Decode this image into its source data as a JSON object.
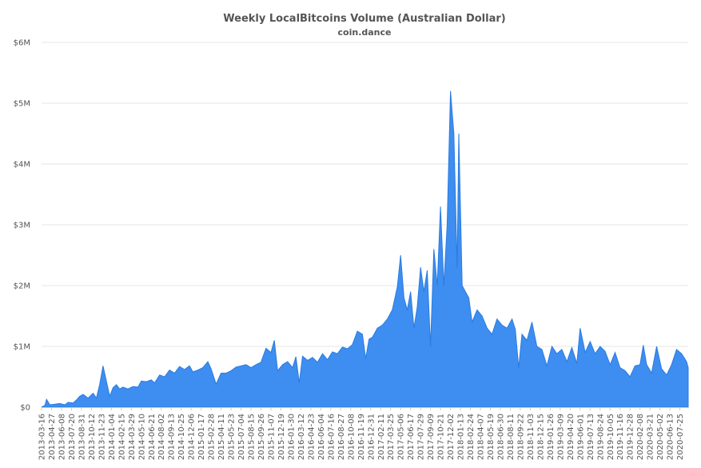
{
  "chart_data": {
    "type": "area",
    "title": "Weekly LocalBitcoins Volume (Australian Dollar)",
    "subtitle": "coin.dance",
    "xlabel": "",
    "ylabel": "",
    "ylim": [
      0,
      6000000
    ],
    "y_ticks": [
      {
        "value": 0,
        "label": "$0"
      },
      {
        "value": 1000000,
        "label": "$1M"
      },
      {
        "value": 2000000,
        "label": "$2M"
      },
      {
        "value": 3000000,
        "label": "$3M"
      },
      {
        "value": 4000000,
        "label": "$4M"
      },
      {
        "value": 5000000,
        "label": "$5M"
      },
      {
        "value": 6000000,
        "label": "$6M"
      }
    ],
    "x_tick_labels": [
      "2013-03-16",
      "2013-04-27",
      "2013-06-08",
      "2013-07-20",
      "2013-08-31",
      "2013-10-12",
      "2013-11-23",
      "2014-01-04",
      "2014-02-15",
      "2014-03-29",
      "2014-05-10",
      "2014-06-21",
      "2014-08-02",
      "2014-09-13",
      "2014-10-25",
      "2014-12-06",
      "2015-01-17",
      "2015-02-28",
      "2015-04-11",
      "2015-05-23",
      "2015-07-04",
      "2015-08-15",
      "2015-09-26",
      "2015-11-07",
      "2015-12-19",
      "2016-01-30",
      "2016-03-12",
      "2016-04-23",
      "2016-06-04",
      "2016-07-16",
      "2016-08-27",
      "2016-10-08",
      "2016-11-19",
      "2016-12-31",
      "2017-02-11",
      "2017-03-25",
      "2017-05-06",
      "2017-06-17",
      "2017-07-29",
      "2017-09-09",
      "2017-10-21",
      "2017-12-02",
      "2018-01-13",
      "2018-02-24",
      "2018-04-07",
      "2018-05-19",
      "2018-06-30",
      "2018-08-11",
      "2018-09-22",
      "2018-11-03",
      "2018-12-15",
      "2019-01-26",
      "2019-03-09",
      "2019-04-20",
      "2019-06-01",
      "2019-07-13",
      "2019-08-24",
      "2019-10-05",
      "2019-11-16",
      "2019-12-28",
      "2020-02-08",
      "2020-03-21",
      "2020-05-02",
      "2020-06-13",
      "2020-07-25"
    ],
    "x_start": "2013-03-16",
    "x_end": "2020-08-29",
    "series": [
      {
        "color": "#3d8ef0",
        "values": [
          [
            "2013-03-16",
            0
          ],
          [
            "2013-03-30",
            30000
          ],
          [
            "2013-04-06",
            130000
          ],
          [
            "2013-04-20",
            40000
          ],
          [
            "2013-05-11",
            50000
          ],
          [
            "2013-06-01",
            60000
          ],
          [
            "2013-06-22",
            40000
          ],
          [
            "2013-07-06",
            80000
          ],
          [
            "2013-07-27",
            70000
          ],
          [
            "2013-08-10",
            120000
          ],
          [
            "2013-08-24",
            180000
          ],
          [
            "2013-09-07",
            210000
          ],
          [
            "2013-09-28",
            150000
          ],
          [
            "2013-10-19",
            230000
          ],
          [
            "2013-11-02",
            150000
          ],
          [
            "2013-11-16",
            380000
          ],
          [
            "2013-11-30",
            680000
          ],
          [
            "2013-12-14",
            430000
          ],
          [
            "2013-12-28",
            180000
          ],
          [
            "2014-01-11",
            320000
          ],
          [
            "2014-01-25",
            370000
          ],
          [
            "2014-02-08",
            300000
          ],
          [
            "2014-02-22",
            330000
          ],
          [
            "2014-03-15",
            300000
          ],
          [
            "2014-04-05",
            340000
          ],
          [
            "2014-04-26",
            330000
          ],
          [
            "2014-05-10",
            430000
          ],
          [
            "2014-05-31",
            420000
          ],
          [
            "2014-06-21",
            450000
          ],
          [
            "2014-07-05",
            400000
          ],
          [
            "2014-07-26",
            530000
          ],
          [
            "2014-08-16",
            500000
          ],
          [
            "2014-09-06",
            610000
          ],
          [
            "2014-09-27",
            560000
          ],
          [
            "2014-10-18",
            670000
          ],
          [
            "2014-11-08",
            620000
          ],
          [
            "2014-11-29",
            680000
          ],
          [
            "2014-12-13",
            580000
          ],
          [
            "2015-01-03",
            610000
          ],
          [
            "2015-01-24",
            650000
          ],
          [
            "2015-02-14",
            750000
          ],
          [
            "2015-02-28",
            630000
          ],
          [
            "2015-03-21",
            380000
          ],
          [
            "2015-04-11",
            560000
          ],
          [
            "2015-05-02",
            560000
          ],
          [
            "2015-05-23",
            600000
          ],
          [
            "2015-06-13",
            660000
          ],
          [
            "2015-07-04",
            680000
          ],
          [
            "2015-07-25",
            700000
          ],
          [
            "2015-08-15",
            650000
          ],
          [
            "2015-09-05",
            700000
          ],
          [
            "2015-09-26",
            740000
          ],
          [
            "2015-10-17",
            970000
          ],
          [
            "2015-11-07",
            900000
          ],
          [
            "2015-11-21",
            1100000
          ],
          [
            "2015-12-05",
            600000
          ],
          [
            "2015-12-26",
            700000
          ],
          [
            "2016-01-16",
            750000
          ],
          [
            "2016-02-06",
            650000
          ],
          [
            "2016-02-20",
            830000
          ],
          [
            "2016-03-05",
            400000
          ],
          [
            "2016-03-19",
            840000
          ],
          [
            "2016-04-09",
            770000
          ],
          [
            "2016-04-30",
            820000
          ],
          [
            "2016-05-21",
            740000
          ],
          [
            "2016-06-11",
            880000
          ],
          [
            "2016-07-02",
            780000
          ],
          [
            "2016-07-23",
            910000
          ],
          [
            "2016-08-13",
            880000
          ],
          [
            "2016-09-03",
            990000
          ],
          [
            "2016-09-24",
            960000
          ],
          [
            "2016-10-15",
            1030000
          ],
          [
            "2016-11-05",
            1250000
          ],
          [
            "2016-11-26",
            1200000
          ],
          [
            "2016-12-10",
            800000
          ],
          [
            "2016-12-24",
            1120000
          ],
          [
            "2017-01-07",
            1150000
          ],
          [
            "2017-01-28",
            1300000
          ],
          [
            "2017-02-18",
            1350000
          ],
          [
            "2017-03-11",
            1450000
          ],
          [
            "2017-04-01",
            1600000
          ],
          [
            "2017-04-22",
            1980000
          ],
          [
            "2017-05-06",
            2500000
          ],
          [
            "2017-05-20",
            1800000
          ],
          [
            "2017-06-03",
            1600000
          ],
          [
            "2017-06-17",
            1900000
          ],
          [
            "2017-07-01",
            1300000
          ],
          [
            "2017-07-15",
            1650000
          ],
          [
            "2017-07-29",
            2300000
          ],
          [
            "2017-08-12",
            1900000
          ],
          [
            "2017-08-26",
            2250000
          ],
          [
            "2017-09-09",
            1000000
          ],
          [
            "2017-09-23",
            2600000
          ],
          [
            "2017-10-07",
            2000000
          ],
          [
            "2017-10-21",
            3300000
          ],
          [
            "2017-11-04",
            2000000
          ],
          [
            "2017-11-18",
            3000000
          ],
          [
            "2017-12-02",
            5200000
          ],
          [
            "2017-12-16",
            4500000
          ],
          [
            "2017-12-30",
            2300000
          ],
          [
            "2018-01-06",
            4500000
          ],
          [
            "2018-01-20",
            2000000
          ],
          [
            "2018-02-03",
            1900000
          ],
          [
            "2018-02-17",
            1800000
          ],
          [
            "2018-03-03",
            1400000
          ],
          [
            "2018-03-24",
            1600000
          ],
          [
            "2018-04-14",
            1500000
          ],
          [
            "2018-05-05",
            1300000
          ],
          [
            "2018-05-26",
            1200000
          ],
          [
            "2018-06-16",
            1450000
          ],
          [
            "2018-07-07",
            1350000
          ],
          [
            "2018-07-28",
            1300000
          ],
          [
            "2018-08-18",
            1450000
          ],
          [
            "2018-09-01",
            1280000
          ],
          [
            "2018-09-15",
            650000
          ],
          [
            "2018-09-29",
            1200000
          ],
          [
            "2018-10-20",
            1100000
          ],
          [
            "2018-11-10",
            1400000
          ],
          [
            "2018-12-01",
            1000000
          ],
          [
            "2018-12-22",
            950000
          ],
          [
            "2019-01-12",
            680000
          ],
          [
            "2019-02-02",
            1000000
          ],
          [
            "2019-02-23",
            880000
          ],
          [
            "2019-03-16",
            950000
          ],
          [
            "2019-04-06",
            750000
          ],
          [
            "2019-04-27",
            980000
          ],
          [
            "2019-05-18",
            720000
          ],
          [
            "2019-06-01",
            1300000
          ],
          [
            "2019-06-22",
            900000
          ],
          [
            "2019-07-13",
            1080000
          ],
          [
            "2019-08-03",
            880000
          ],
          [
            "2019-08-24",
            1000000
          ],
          [
            "2019-09-14",
            920000
          ],
          [
            "2019-10-05",
            700000
          ],
          [
            "2019-10-26",
            900000
          ],
          [
            "2019-11-16",
            650000
          ],
          [
            "2019-12-07",
            600000
          ],
          [
            "2019-12-28",
            500000
          ],
          [
            "2020-01-18",
            680000
          ],
          [
            "2020-02-08",
            700000
          ],
          [
            "2020-02-22",
            1020000
          ],
          [
            "2020-03-07",
            700000
          ],
          [
            "2020-03-28",
            560000
          ],
          [
            "2020-04-18",
            1000000
          ],
          [
            "2020-05-09",
            630000
          ],
          [
            "2020-05-30",
            530000
          ],
          [
            "2020-06-20",
            700000
          ],
          [
            "2020-07-11",
            950000
          ],
          [
            "2020-08-01",
            880000
          ],
          [
            "2020-08-22",
            750000
          ],
          [
            "2020-08-29",
            650000
          ]
        ]
      }
    ],
    "grid": true,
    "legend": "none"
  }
}
